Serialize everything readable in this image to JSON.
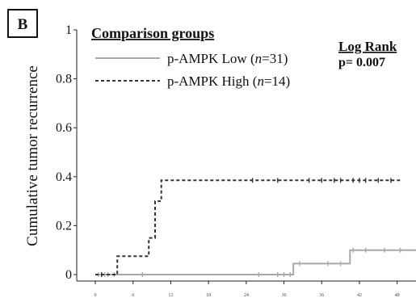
{
  "panel_label": "B",
  "chart_data": {
    "type": "line",
    "subtype": "kaplan-meier-cumulative-incidence",
    "ylabel": "Cumulative tumor recurrence",
    "xlabel": "",
    "ylim": [
      0,
      1
    ],
    "xlim": [
      0,
      51
    ],
    "yticks": [
      0,
      0.2,
      0.4,
      0.6,
      0.8,
      1
    ],
    "ytick_labels": [
      "0",
      "0.2",
      "0.4",
      "0.6",
      "0.8",
      "1"
    ],
    "xticks": [
      0,
      6,
      12,
      18,
      24,
      30,
      36,
      42,
      48
    ],
    "xtick_labels": [
      "0",
      "6",
      "12",
      "18",
      "24",
      "30",
      "36",
      "42",
      "48"
    ],
    "legend": {
      "title": "Comparison groups",
      "position": "top-left",
      "entries": [
        {
          "label_main": "p-AMPK Low (",
          "label_n": "n",
          "label_rest": "=31)",
          "style": "solid"
        },
        {
          "label_main": "p-AMPK High (",
          "label_n": "n",
          "label_rest": "=14)",
          "style": "dashed"
        }
      ]
    },
    "stat": {
      "title": "Log Rank",
      "text": "p= 0.007"
    },
    "series": [
      {
        "name": "p-AMPK Low (n=31)",
        "style": "solid",
        "color": "#a9a9a9",
        "steps": [
          [
            0,
            0
          ],
          [
            31.5,
            0
          ],
          [
            31.5,
            0.045
          ],
          [
            40.5,
            0.045
          ],
          [
            40.5,
            0.1
          ],
          [
            51,
            0.1
          ]
        ],
        "censor_x": [
          0.5,
          1,
          1.5,
          2,
          3,
          7.5,
          26,
          29,
          30,
          31,
          32.5,
          37,
          39,
          41,
          43,
          46,
          48.5
        ]
      },
      {
        "name": "p-AMPK High (n=14)",
        "style": "dashed",
        "color": "#333333",
        "steps": [
          [
            0,
            0
          ],
          [
            3.5,
            0
          ],
          [
            3.5,
            0.075
          ],
          [
            8.5,
            0.075
          ],
          [
            8.5,
            0.15
          ],
          [
            9.5,
            0.15
          ],
          [
            9.5,
            0.3
          ],
          [
            10.5,
            0.3
          ],
          [
            10.5,
            0.385
          ],
          [
            48.5,
            0.385
          ]
        ],
        "censor_x": [
          1,
          25,
          29,
          34,
          36,
          38,
          39,
          41,
          42,
          43,
          45,
          47
        ]
      }
    ]
  }
}
